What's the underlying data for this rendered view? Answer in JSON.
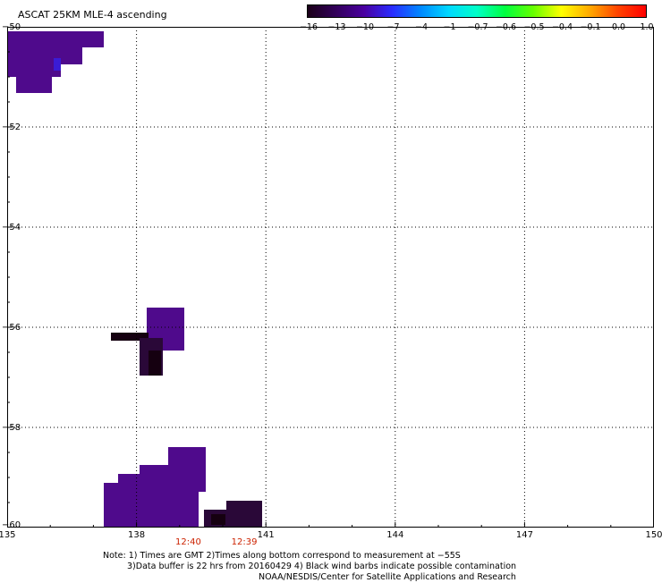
{
  "title": "ASCAT 25KM MLE-4 ascending",
  "colorbar": {
    "labels": [
      "−16",
      "−13",
      "−10",
      "−7",
      "−4",
      "−1",
      "−0.7",
      "−0.6",
      "−0.5",
      "−0.4",
      "−0.1",
      "0.0",
      "1.0"
    ],
    "colors": [
      "#1a0018",
      "#32005a",
      "#4a00a0",
      "#2a2cff",
      "#0088ff",
      "#00d8ff",
      "#00ffc8",
      "#00ff40",
      "#66ff00",
      "#ffff00",
      "#ffaa00",
      "#ff4400",
      "#ff0000"
    ]
  },
  "axes": {
    "lat_labels": [
      "−50",
      "−52",
      "−54",
      "−56",
      "−58",
      "−60"
    ],
    "lon_labels": [
      "135",
      "138",
      "141",
      "144",
      "147",
      "150"
    ],
    "lon_range": [
      135,
      150
    ],
    "lat_range": [
      -50,
      -60
    ]
  },
  "times": [
    {
      "label": "12:40",
      "lon": 139.2
    },
    {
      "label": "12:39",
      "lon": 140.5
    }
  ],
  "notes": {
    "line1": "Note: 1) Times are GMT 2)Times along bottom correspond to measurement at −55S",
    "line2": "3)Data buffer is 22 hrs from 20160429 4) Black wind barbs indicate possible contamination",
    "line3": "NOAA/NESDIS/Center for Satellite Applications and Research"
  },
  "colors": {
    "purple": "#4f0a8c",
    "dark_purple": "#2a0838",
    "black_purple": "#150010",
    "blue_purple": "#3a1cd6"
  }
}
